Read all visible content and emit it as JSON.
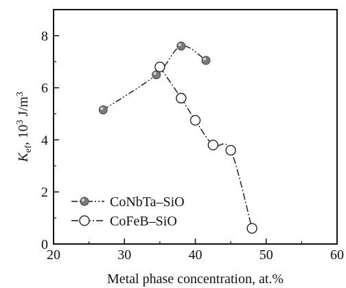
{
  "chart_data": {
    "type": "line",
    "xlabel": "Metal phase concentration, at.%",
    "ylabel": {
      "main": "K",
      "sub": "ef",
      "rest": ", 10",
      "sup": "3",
      "unit": " J/m",
      "unit_sup": "3"
    },
    "xlim": [
      20,
      60
    ],
    "ylim": [
      0,
      9
    ],
    "x_ticks": [
      20,
      30,
      40,
      50,
      60
    ],
    "y_ticks": [
      0,
      2,
      4,
      6,
      8
    ],
    "grid": false,
    "legend_position": "bottom-left",
    "series": [
      {
        "name": "CoNbTa–SiO",
        "marker": "filled-circle",
        "line_style": "dash-dot-dot",
        "color": "#7a7a7a",
        "x": [
          27,
          34.5,
          38,
          41.5
        ],
        "y": [
          5.15,
          6.5,
          7.6,
          7.05
        ]
      },
      {
        "name": "CoFeB–SiO",
        "marker": "open-circle",
        "line_style": "dash-dot",
        "color": "#ffffff",
        "x": [
          35,
          38,
          40,
          42.5,
          45,
          48
        ],
        "y": [
          6.8,
          5.6,
          4.75,
          3.8,
          3.6,
          0.6
        ]
      }
    ]
  }
}
